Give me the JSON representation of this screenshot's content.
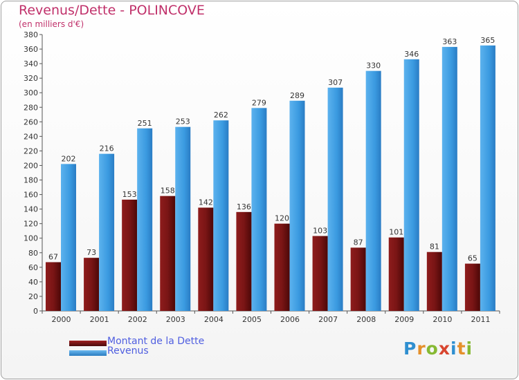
{
  "title": "Revenus/Dette - POLINCOVE",
  "subtitle": "(en milliers d'€)",
  "legend": {
    "dette_label": "Montant de la Dette",
    "revenus_label": "Revenus"
  },
  "logo_text": "Proxiti",
  "colors": {
    "title": "#c0306a",
    "dette": "#7a1515",
    "revenus": "#3a9ae0",
    "legend_text": "#4f5ee0"
  },
  "chart_data": {
    "type": "bar",
    "title": "Revenus/Dette - POLINCOVE",
    "ylabel": "(en milliers d'€)",
    "xlabel": "",
    "categories": [
      "2000",
      "2001",
      "2002",
      "2003",
      "2004",
      "2005",
      "2006",
      "2007",
      "2008",
      "2009",
      "2010",
      "2011"
    ],
    "series": [
      {
        "name": "Montant de la Dette",
        "values": [
          67,
          73,
          153,
          158,
          142,
          136,
          120,
          103,
          87,
          101,
          81,
          65
        ]
      },
      {
        "name": "Revenus",
        "values": [
          202,
          216,
          251,
          253,
          262,
          279,
          289,
          307,
          330,
          346,
          363,
          365
        ]
      }
    ],
    "ylim": [
      0,
      380
    ],
    "ytick_step": 20,
    "grid": false,
    "legend_position": "bottom-left"
  }
}
